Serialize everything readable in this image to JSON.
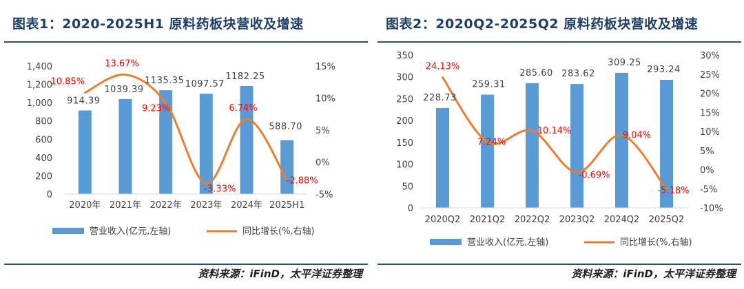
{
  "colors": {
    "bar": "#5b9bd5",
    "line": "#ed7d31",
    "label_red": "#ff0000",
    "axis_text": "#404040",
    "title": "#1f3e63"
  },
  "panels": [
    {
      "title": "图表1：2020-2025H1 原料药板块营收及增速",
      "source": "资料来源：iFinD，太平洋证券整理",
      "legend": {
        "bar": "营业收入(亿元,左轴)",
        "line": "同比增长(%,右轴)"
      }
    },
    {
      "title": "图表2：2020Q2-2025Q2 原料药板块营收及增速",
      "source": "资料来源：iFinD，太平洋证券整理",
      "legend": {
        "bar": "营业收入(亿元,左轴)",
        "line": "同比增长(%,右轴)"
      }
    }
  ],
  "chart_data": [
    {
      "type": "bar",
      "title": "2020-2025H1 原料药板块营收及增速",
      "categories": [
        "2020年",
        "2021年",
        "2022年",
        "2023年",
        "2024年",
        "2025H1"
      ],
      "series": [
        {
          "name": "营业收入(亿元,左轴)",
          "type": "bar",
          "axis": "left",
          "values": [
            914.39,
            1039.39,
            1135.35,
            1097.57,
            1182.25,
            588.7
          ],
          "labels": [
            "914.39",
            "1039.39",
            "1135.35",
            "1097.57",
            "1182.25",
            "588.70"
          ]
        },
        {
          "name": "同比增长(%,右轴)",
          "type": "line",
          "axis": "right",
          "values": [
            10.85,
            13.67,
            9.23,
            -3.33,
            6.74,
            -2.88
          ],
          "labels": [
            "10.85%",
            "13.67%",
            "9.23%",
            "-3.33%",
            "6.74%",
            "-2.88%"
          ]
        }
      ],
      "left_axis": {
        "min": 0,
        "max": 1400,
        "step": 200,
        "ticks": [
          "0",
          "200",
          "400",
          "600",
          "800",
          "1,000",
          "1,200",
          "1,400"
        ]
      },
      "right_axis": {
        "min": -5,
        "max": 15,
        "step": 5,
        "ticks": [
          "-5%",
          "0%",
          "5%",
          "10%",
          "15%"
        ]
      },
      "legend_position": "bottom"
    },
    {
      "type": "bar",
      "title": "2020Q2-2025Q2 原料药板块营收及增速",
      "categories": [
        "2020Q2",
        "2021Q2",
        "2022Q2",
        "2023Q2",
        "2024Q2",
        "2025Q2"
      ],
      "series": [
        {
          "name": "营业收入(亿元,左轴)",
          "type": "bar",
          "axis": "left",
          "values": [
            228.73,
            259.31,
            285.6,
            283.62,
            309.25,
            293.24
          ],
          "labels": [
            "228.73",
            "259.31",
            "285.60",
            "283.62",
            "309.25",
            "293.24"
          ]
        },
        {
          "name": "同比增长(%,右轴)",
          "type": "line",
          "axis": "right",
          "values": [
            24.13,
            7.24,
            10.14,
            -0.69,
            9.04,
            -5.18
          ],
          "labels": [
            "24.13%",
            "7.24%",
            "10.14%",
            "-0.69%",
            "9.04%",
            "-5.18%"
          ]
        }
      ],
      "left_axis": {
        "min": 0,
        "max": 350,
        "step": 50,
        "ticks": [
          "0",
          "50",
          "100",
          "150",
          "200",
          "250",
          "300",
          "350"
        ]
      },
      "right_axis": {
        "min": -10,
        "max": 30,
        "step": 5,
        "ticks": [
          "-10%",
          "-5%",
          "0%",
          "5%",
          "10%",
          "15%",
          "20%",
          "25%",
          "30%"
        ]
      },
      "legend_position": "bottom"
    }
  ]
}
